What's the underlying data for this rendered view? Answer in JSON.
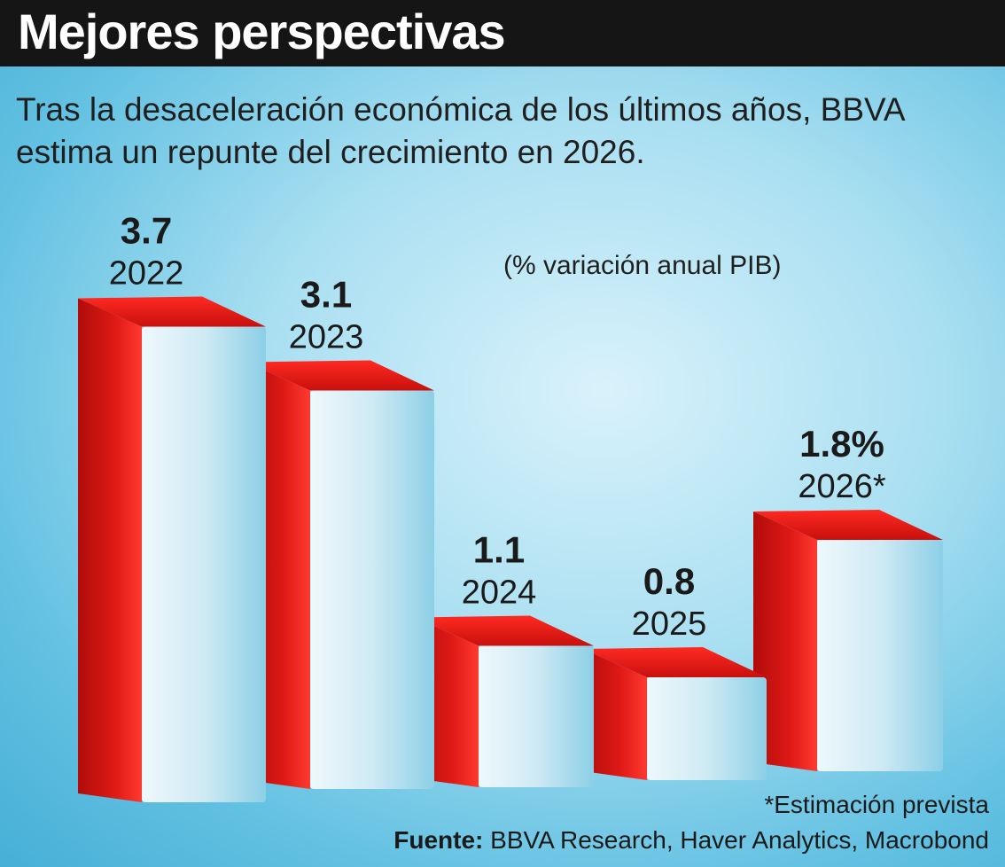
{
  "header": {
    "title": "Mejores perspectivas"
  },
  "subtitle": "Tras la desaceleración económica de los últimos años, BBVA estima un repunte del crecimiento en 2026.",
  "unit_note": "(% variación anual PIB)",
  "footnote": "*Estimación prevista",
  "source": {
    "label": "Fuente:",
    "text": " BBVA Research, Haver Analytics, Macrobond"
  },
  "colors": {
    "bar_red": "#e01a17",
    "bar_front": "#cfeaf4",
    "header_bg": "#151515"
  },
  "chart_data": {
    "type": "bar",
    "title": "Mejores perspectivas",
    "ylabel": "% variación anual PIB",
    "categories": [
      "2022",
      "2023",
      "2024",
      "2025",
      "2026*"
    ],
    "values": [
      3.7,
      3.1,
      1.1,
      0.8,
      1.8
    ],
    "value_labels": [
      "3.7",
      "3.1",
      "1.1",
      "0.8",
      "1.8%"
    ],
    "ylim": [
      0,
      4
    ]
  }
}
